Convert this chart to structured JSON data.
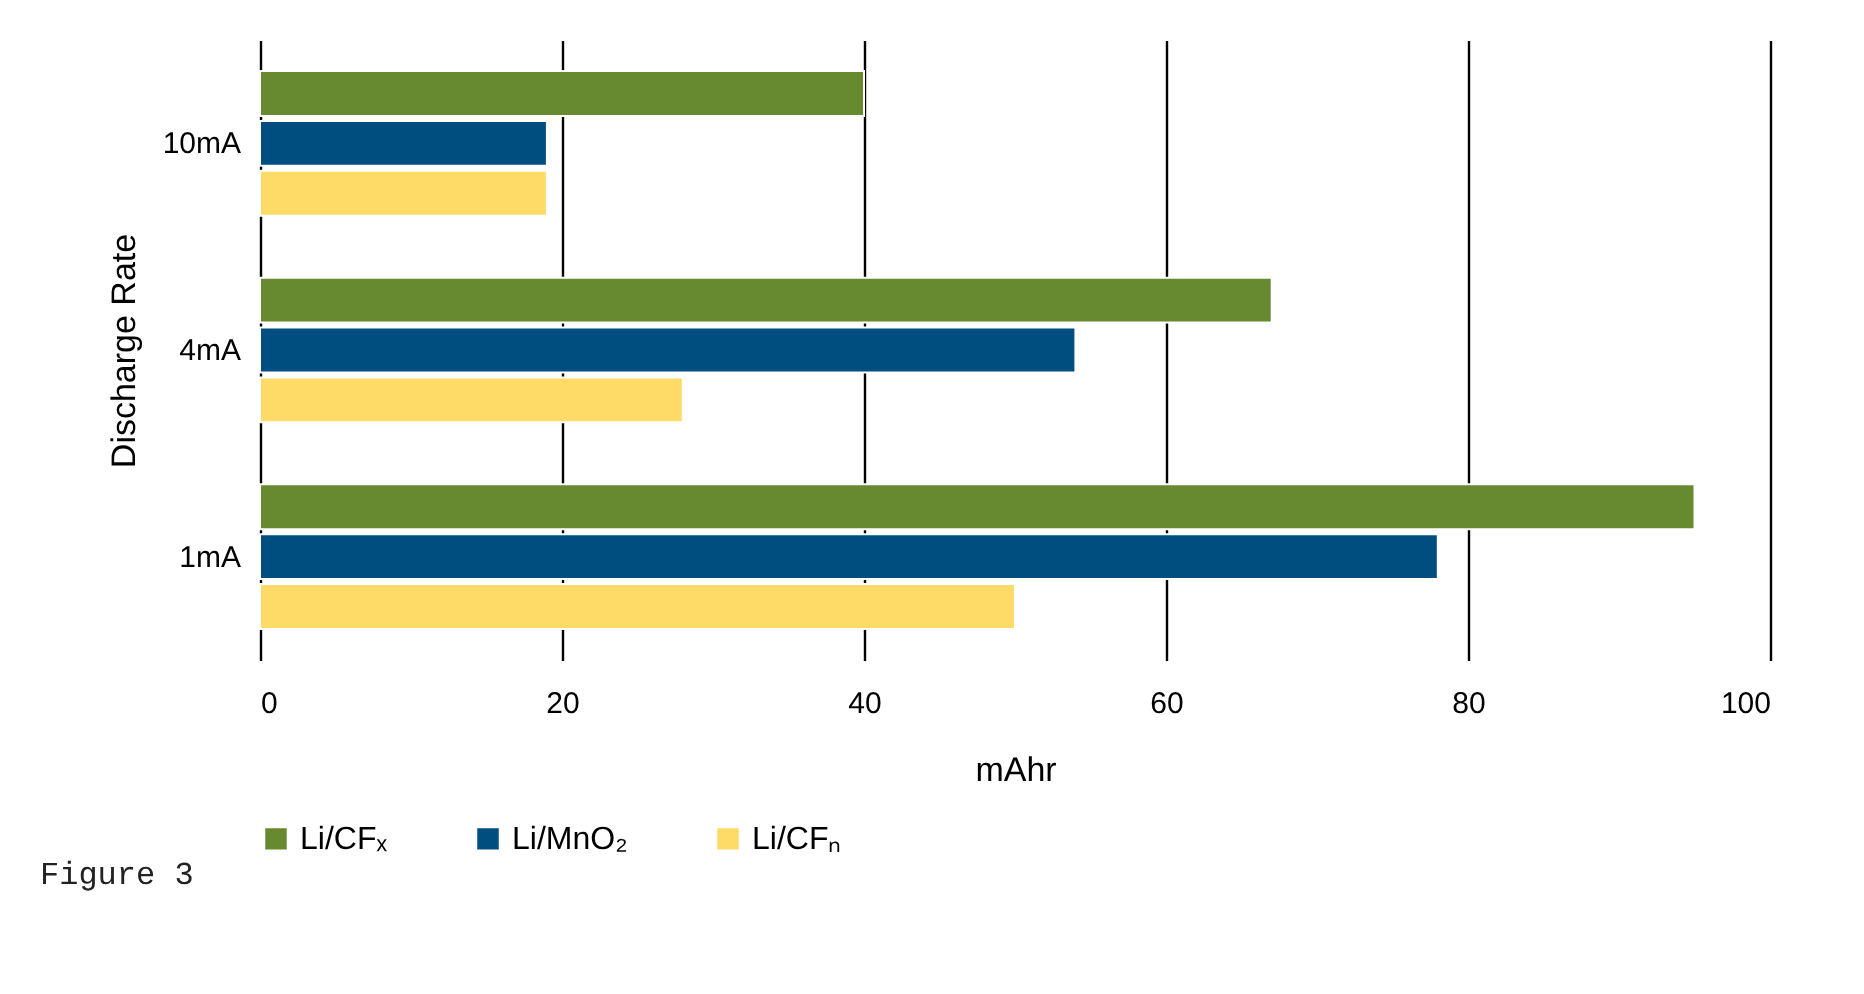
{
  "chart_data": {
    "type": "bar",
    "orientation": "horizontal",
    "xlabel": "mAhr",
    "ylabel": "Discharge Rate",
    "categories": [
      "10mA",
      "4mA",
      "1mA"
    ],
    "series": [
      {
        "name": "Li/CFₓ",
        "color": "#67892f",
        "values": [
          40,
          67,
          95
        ]
      },
      {
        "name": "Li/MnO₂",
        "color": "#004d80",
        "values": [
          19,
          54,
          78
        ]
      },
      {
        "name": "Li/CFₙ",
        "color": "#fedb66",
        "values": [
          19,
          28,
          50
        ]
      }
    ],
    "xlim": [
      0,
      100
    ],
    "xticks": [
      0,
      20,
      40,
      60,
      80,
      100
    ],
    "grid": "x",
    "legend": "bottom",
    "annotations": [
      "Figure 3"
    ]
  }
}
